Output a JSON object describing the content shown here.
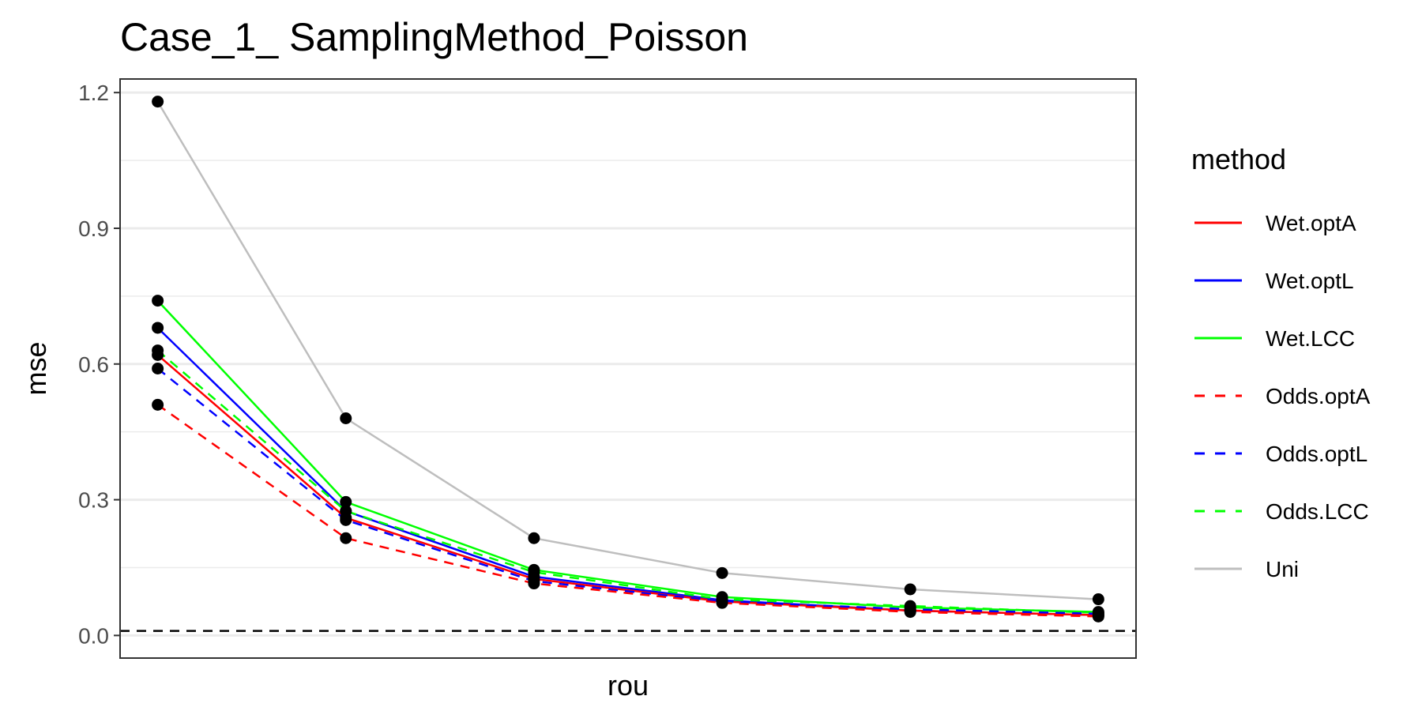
{
  "chart_data": {
    "type": "line",
    "title": "Case_1_ SamplingMethod_Poisson",
    "xlabel": "rou",
    "ylabel": "mse",
    "x": [
      1,
      2,
      3,
      4,
      5,
      6
    ],
    "xlim": [
      0.8,
      6.2
    ],
    "ylim": [
      -0.05,
      1.23
    ],
    "yticks": [
      0.0,
      0.3,
      0.6,
      0.9,
      1.2
    ],
    "ytick_labels": [
      "0.0",
      "0.3",
      "0.6",
      "0.9",
      "1.2"
    ],
    "grid": true,
    "reference_line": {
      "y": 0.01,
      "style": "dashed",
      "color": "#000000"
    },
    "legend": {
      "title": "method",
      "position": "right"
    },
    "series": [
      {
        "name": "Wet.optA",
        "color": "#ff0000",
        "dash": "solid",
        "values": [
          0.62,
          0.26,
          0.125,
          0.075,
          0.055,
          0.045
        ]
      },
      {
        "name": "Wet.optL",
        "color": "#0000ff",
        "dash": "solid",
        "values": [
          0.68,
          0.275,
          0.13,
          0.078,
          0.055,
          0.045
        ]
      },
      {
        "name": "Wet.LCC",
        "color": "#00ff00",
        "dash": "solid",
        "values": [
          0.74,
          0.295,
          0.145,
          0.085,
          0.062,
          0.052
        ]
      },
      {
        "name": "Odds.optA",
        "color": "#ff0000",
        "dash": "dashed",
        "values": [
          0.51,
          0.215,
          0.115,
          0.072,
          0.052,
          0.042
        ]
      },
      {
        "name": "Odds.optL",
        "color": "#0000ff",
        "dash": "dashed",
        "values": [
          0.59,
          0.255,
          0.12,
          0.075,
          0.058,
          0.048
        ]
      },
      {
        "name": "Odds.LCC",
        "color": "#00ff00",
        "dash": "dashed",
        "values": [
          0.63,
          0.275,
          0.14,
          0.08,
          0.065,
          0.05
        ]
      },
      {
        "name": "Uni",
        "color": "#bebebe",
        "dash": "solid",
        "values": [
          1.18,
          0.48,
          0.215,
          0.138,
          0.102,
          0.08
        ]
      }
    ]
  }
}
